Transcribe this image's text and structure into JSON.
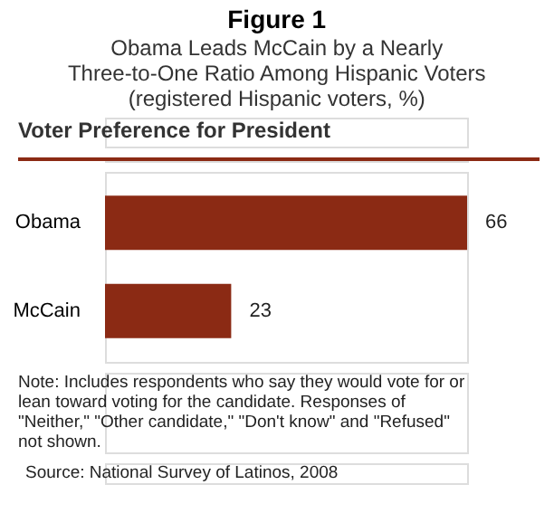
{
  "chart_data": {
    "type": "bar",
    "orientation": "horizontal",
    "title": "Figure 1",
    "subtitle": [
      "Obama Leads McCain by a Nearly",
      "Three-to-One Ratio Among Hispanic Voters",
      "(registered Hispanic voters, %)"
    ],
    "categories": [
      "Obama",
      "McCain"
    ],
    "values": [
      66,
      23
    ],
    "color": "#8b2a14",
    "data_labels": true,
    "grid": false,
    "annotations": [
      "Voter Preference for President",
      "Note: Includes respondents who say they would vote for or lean toward voting for the candidate.  Responses of \"Neither,\" \"Other candidate,\" \"Don't know\" and \"Refused\" not shown.",
      "Source: National Survey of Latinos, 2008"
    ]
  }
}
